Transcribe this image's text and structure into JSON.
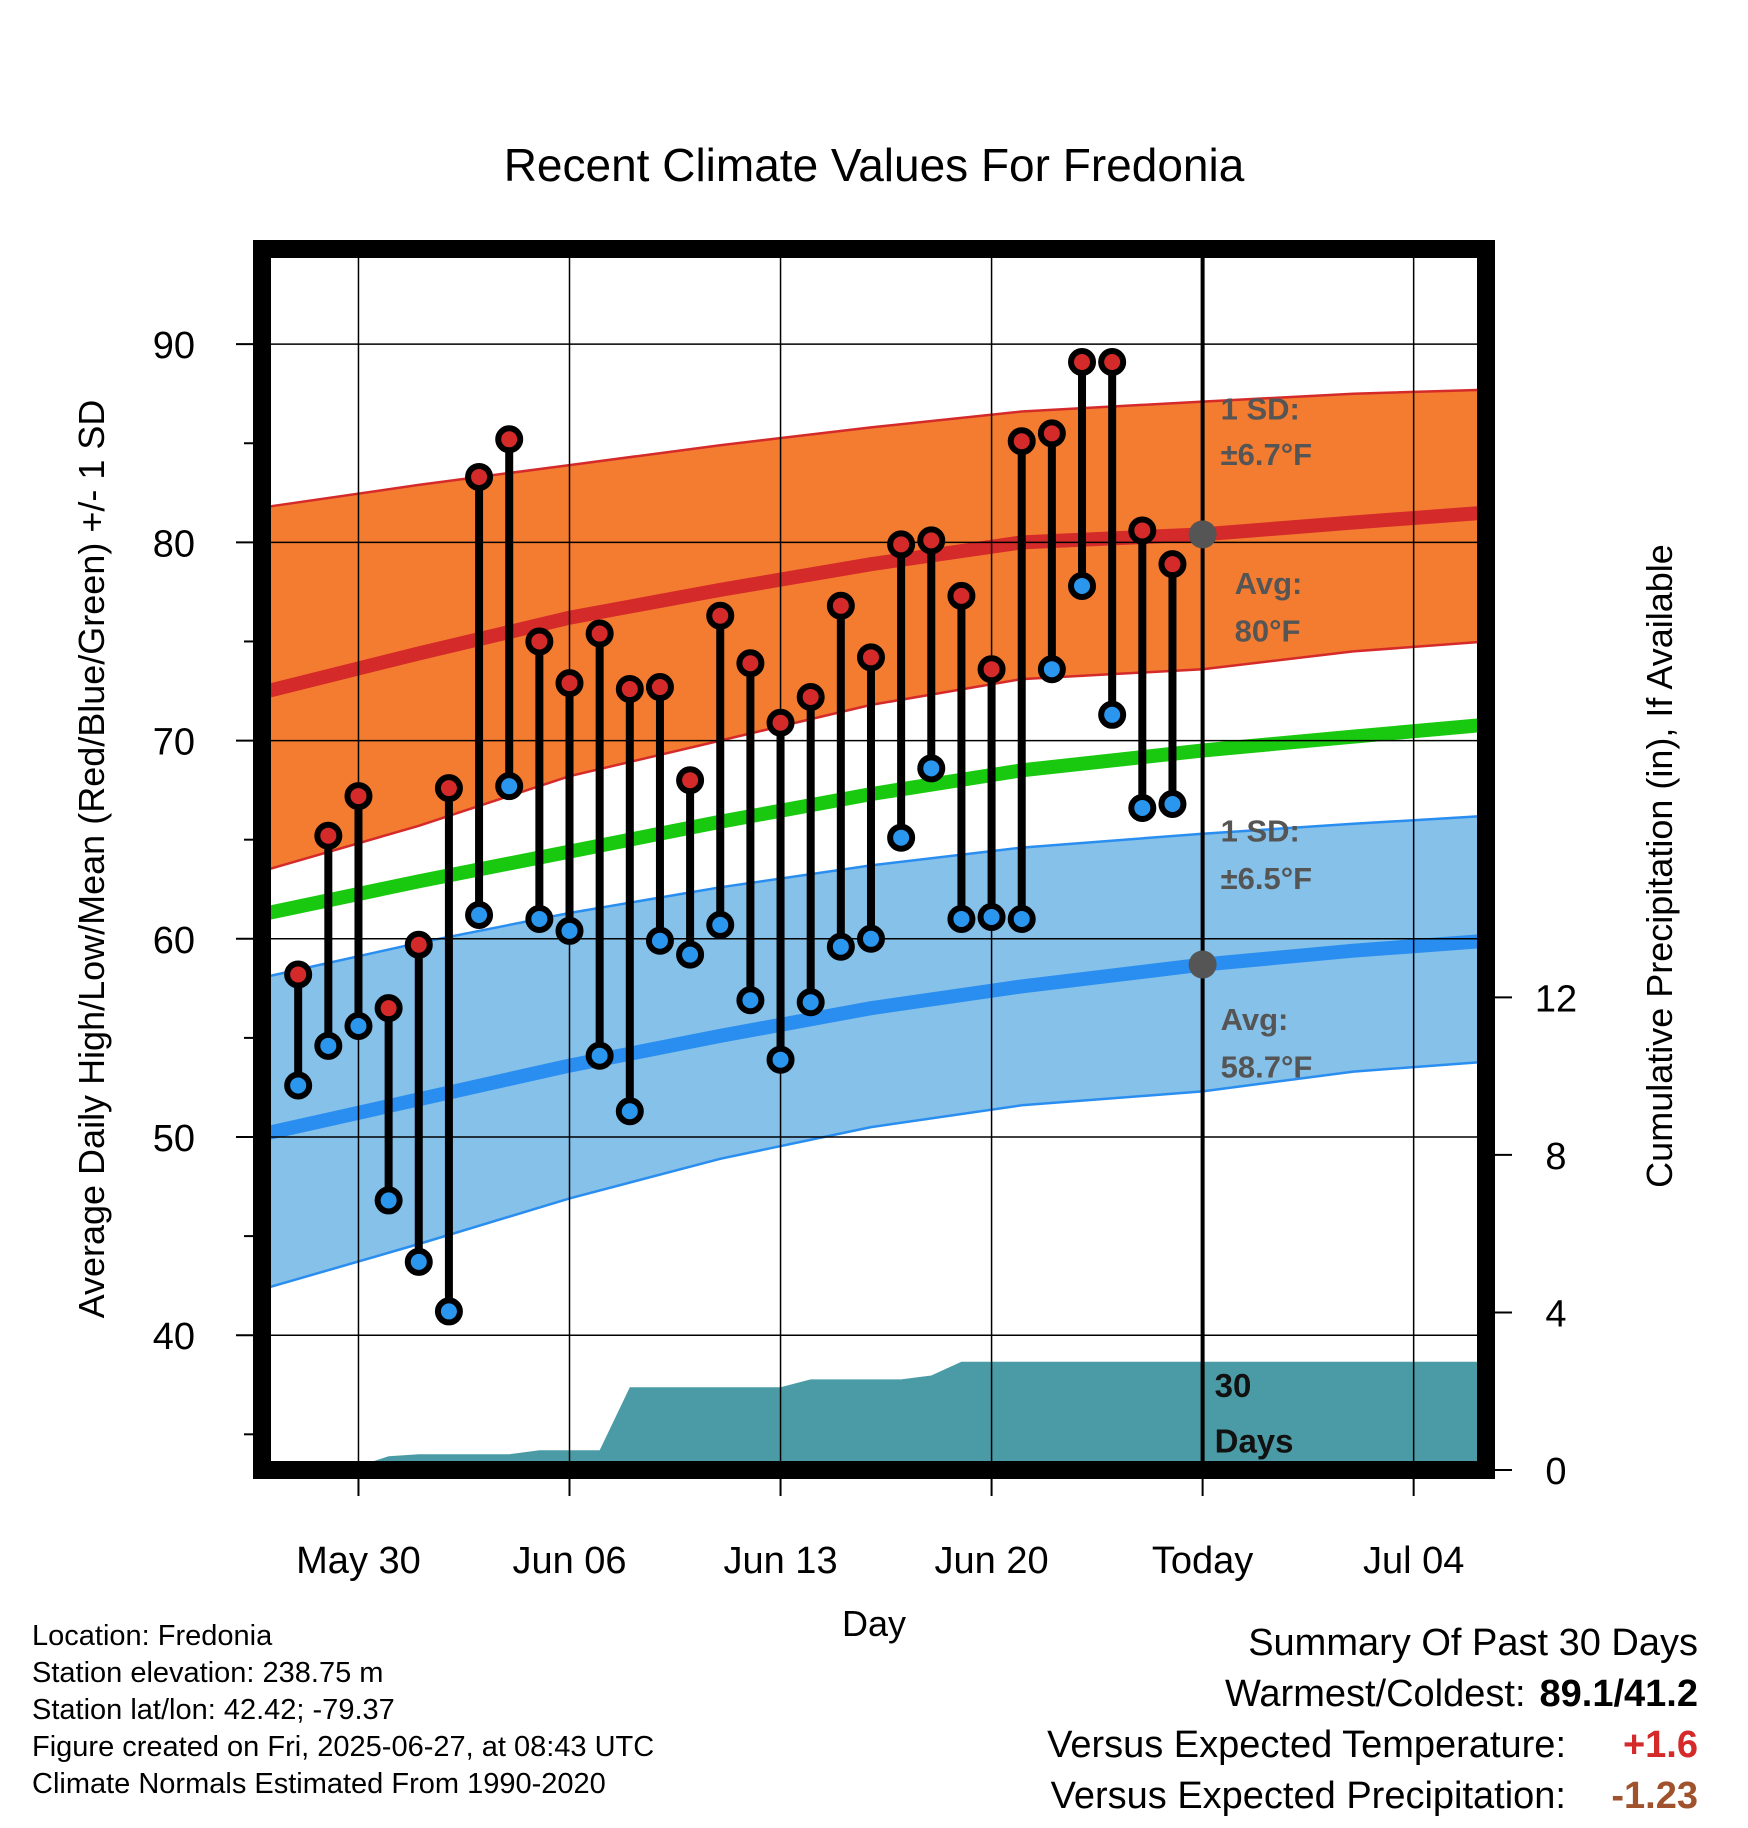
{
  "chart_data": {
    "type": "line",
    "title": "Recent Climate Values For Fredonia",
    "xlabel": "Day",
    "ylabel": "Average Daily High/Low/Mean (Red/Blue/Green) +/- 1 SD",
    "y2label": "Cumulative Precipitation (in), If Available",
    "x_ticks": [
      "May 30",
      "Jun 06",
      "Jun 13",
      "Jun 20",
      "Today",
      "Jul 04"
    ],
    "x_tick_days": [
      3,
      10,
      17,
      24,
      31,
      38
    ],
    "xlim": [
      -0.2,
      40.4
    ],
    "ylim": [
      33.2,
      94.8
    ],
    "y_ticks": [
      40,
      50,
      60,
      70,
      80,
      90
    ],
    "y2_ticks": [
      0,
      4,
      8,
      12
    ],
    "y2lim": [
      0,
      31
    ],
    "grid": true,
    "today_day": 31,
    "normals": {
      "days": [
        0,
        5,
        10,
        15,
        20,
        25,
        31,
        36,
        40.4
      ],
      "high_mean": [
        72.5,
        74.4,
        76.2,
        77.6,
        78.9,
        80.0,
        80.4,
        81.0,
        81.5
      ],
      "high_upper": [
        81.8,
        82.9,
        83.9,
        84.9,
        85.8,
        86.6,
        87.1,
        87.5,
        87.7
      ],
      "high_lower": [
        63.5,
        65.7,
        68.2,
        70.0,
        71.8,
        73.1,
        73.6,
        74.5,
        75.0
      ],
      "mean": [
        61.3,
        62.9,
        64.4,
        65.9,
        67.3,
        68.5,
        69.5,
        70.2,
        70.8
      ],
      "low_mean": [
        50.2,
        51.9,
        53.6,
        55.1,
        56.5,
        57.6,
        58.7,
        59.4,
        59.9
      ],
      "low_upper": [
        58.1,
        59.8,
        61.3,
        62.6,
        63.7,
        64.6,
        65.3,
        65.8,
        66.2
      ],
      "low_lower": [
        42.4,
        44.6,
        46.9,
        48.9,
        50.5,
        51.6,
        52.3,
        53.3,
        53.8
      ]
    },
    "series": [
      {
        "name": "High",
        "color": "#d42a2a",
        "days": [
          1,
          2,
          3,
          4,
          5,
          6,
          7,
          8,
          9,
          10,
          11,
          12,
          13,
          14,
          15,
          16,
          17,
          18,
          19,
          20,
          21,
          22,
          23,
          24,
          25,
          26,
          27,
          28,
          29,
          30
        ],
        "values": [
          58.2,
          65.2,
          67.2,
          56.5,
          59.7,
          67.6,
          83.3,
          85.2,
          75.0,
          72.9,
          75.4,
          72.6,
          72.7,
          68.0,
          76.3,
          73.9,
          70.9,
          72.2,
          76.8,
          74.2,
          79.9,
          80.1,
          77.3,
          73.6,
          85.1,
          85.5,
          89.1,
          89.1,
          80.6,
          78.9
        ]
      },
      {
        "name": "Low",
        "color": "#2a96ee",
        "days": [
          1,
          2,
          3,
          4,
          5,
          6,
          7,
          8,
          9,
          10,
          11,
          12,
          13,
          14,
          15,
          16,
          17,
          18,
          19,
          20,
          21,
          22,
          23,
          24,
          25,
          26,
          27,
          28,
          29,
          30
        ],
        "values": [
          52.6,
          54.6,
          55.6,
          46.8,
          43.7,
          41.2,
          61.2,
          67.7,
          61.0,
          60.4,
          54.1,
          51.3,
          59.9,
          59.2,
          60.7,
          56.9,
          53.9,
          56.8,
          59.6,
          60.0,
          65.1,
          68.6,
          61.0,
          61.1,
          61.0,
          73.6,
          77.8,
          71.3,
          66.6,
          66.8
        ]
      }
    ],
    "precip": {
      "name": "Cumulative Precipitation",
      "days": [
        0,
        2,
        3,
        4,
        5,
        8,
        9,
        11,
        12,
        13,
        17,
        18,
        20,
        21,
        22,
        23,
        24,
        40.4
      ],
      "values": [
        0.0,
        0.05,
        0.1,
        0.35,
        0.4,
        0.4,
        0.5,
        0.5,
        2.1,
        2.1,
        2.1,
        2.3,
        2.3,
        2.3,
        2.4,
        2.75,
        2.75,
        2.75
      ]
    },
    "annotations": {
      "high_sd": "1 SD:",
      "high_sd_value": "±6.7°F",
      "high_avg": "Avg:",
      "high_avg_value": "80°F",
      "low_sd": "1 SD:",
      "low_sd_value": "±6.5°F",
      "low_avg": "Avg:",
      "low_avg_value": "58.7°F",
      "precip_days_num": "30",
      "precip_days_word": "Days"
    },
    "colors": {
      "high_band": "#f47c30",
      "high_line": "#d42a2a",
      "mean_line": "#19c90f",
      "low_band": "#85c1e8",
      "low_line": "#2a8ef0",
      "precip_fill": "#4a9ba6",
      "avg_marker": "#555555"
    }
  },
  "footer": {
    "location": "Location: Fredonia",
    "elevation": "Station elevation: 238.75 m",
    "latlon": "Station lat/lon: 42.42; -79.37",
    "created": "Figure created on Fri, 2025-06-27, at 08:43 UTC",
    "normals": "Climate Normals Estimated From 1990-2020"
  },
  "summary": {
    "heading": "Summary Of Past 30 Days",
    "warmest_coldest_label": "Warmest/Coldest:",
    "warmest_coldest_value": "89.1/41.2",
    "temp_label": "Versus Expected Temperature:",
    "temp_value": "+1.6",
    "temp_color": "#d42a2a",
    "precip_label": "Versus Expected Precipitation:",
    "precip_value": "-1.23",
    "precip_color": "#a0522d"
  }
}
